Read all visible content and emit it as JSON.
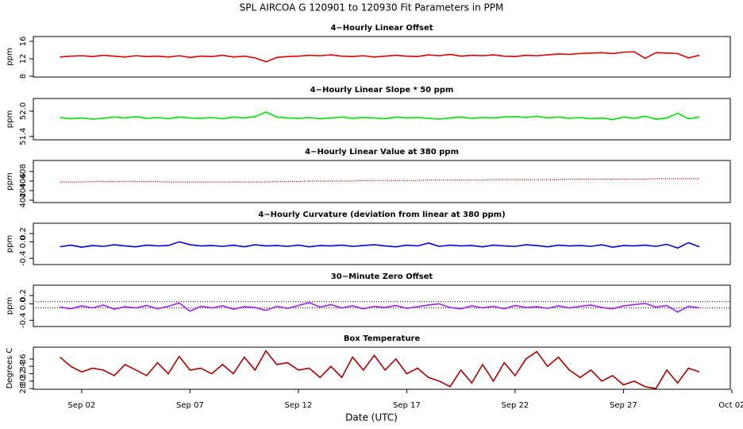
{
  "title": "SPL   AIRCOA G   120901 to 120930   Fit Parameters in PPM",
  "x_label": "Date (UTC)",
  "chart_data": [
    {
      "type": "line",
      "title": "4−Hourly Linear Offset",
      "y_label": "ppm",
      "color": "#dd0000",
      "line_style": "solid",
      "xlim": [
        -0.23,
        31.93
      ],
      "ylim": [
        7.8,
        17.1
      ],
      "yticks": [
        8,
        12,
        16
      ],
      "x": [
        1,
        1.5,
        2,
        2.5,
        3,
        3.5,
        4,
        4.5,
        5,
        5.5,
        6,
        6.5,
        7,
        7.5,
        8,
        8.5,
        9,
        9.5,
        10,
        10.5,
        11,
        11.5,
        12,
        12.5,
        13,
        13.5,
        14,
        14.5,
        15,
        15.5,
        16,
        16.5,
        17,
        17.5,
        18,
        18.5,
        19,
        19.5,
        20,
        20.5,
        21,
        21.5,
        22,
        22.5,
        23,
        23.5,
        24,
        24.5,
        25,
        25.5,
        26,
        26.5,
        27,
        27.5,
        28,
        28.5,
        29,
        29.5,
        30,
        30.5
      ],
      "values": [
        12.4,
        12.6,
        12.7,
        12.5,
        12.8,
        12.6,
        12.4,
        12.7,
        12.5,
        12.6,
        12.4,
        12.7,
        12.3,
        12.6,
        12.5,
        12.8,
        12.4,
        12.6,
        12.2,
        11.3,
        12.3,
        12.5,
        12.6,
        12.8,
        12.7,
        12.9,
        12.6,
        12.5,
        12.7,
        12.4,
        12.6,
        12.8,
        12.6,
        12.5,
        12.9,
        12.7,
        13.0,
        12.6,
        12.8,
        12.7,
        12.9,
        12.6,
        12.5,
        12.8,
        12.7,
        12.9,
        13.1,
        13.0,
        13.2,
        13.3,
        13.4,
        13.2,
        13.5,
        13.6,
        12.1,
        13.4,
        13.3,
        13.2,
        12.2,
        12.8
      ]
    },
    {
      "type": "line",
      "title": "4−Hourly Linear Slope * 50 ppm",
      "y_label": "ppm",
      "color": "#00e000",
      "line_style": "solid",
      "xlim": [
        -0.23,
        31.93
      ],
      "ylim": [
        51.32,
        52.3
      ],
      "yticks": [
        51.4,
        {
          "value": 52,
          "label": "52.0"
        }
      ],
      "x": [
        1,
        1.5,
        2,
        2.5,
        3,
        3.5,
        4,
        4.5,
        5,
        5.5,
        6,
        6.5,
        7,
        7.5,
        8,
        8.5,
        9,
        9.5,
        10,
        10.5,
        11,
        11.5,
        12,
        12.5,
        13,
        13.5,
        14,
        14.5,
        15,
        15.5,
        16,
        16.5,
        17,
        17.5,
        18,
        18.5,
        19,
        19.5,
        20,
        20.5,
        21,
        21.5,
        22,
        22.5,
        23,
        23.5,
        24,
        24.5,
        25,
        25.5,
        26,
        26.5,
        27,
        27.5,
        28,
        28.5,
        29,
        29.5,
        30,
        30.5
      ],
      "values": [
        51.85,
        51.82,
        51.84,
        51.81,
        51.83,
        51.86,
        51.84,
        51.87,
        51.83,
        51.85,
        51.82,
        51.86,
        51.84,
        51.83,
        51.85,
        51.82,
        51.86,
        51.84,
        51.87,
        51.98,
        51.86,
        51.84,
        51.83,
        51.85,
        51.82,
        51.84,
        51.86,
        51.83,
        51.85,
        51.84,
        51.82,
        51.86,
        51.84,
        51.85,
        51.83,
        51.81,
        51.84,
        51.86,
        51.83,
        51.85,
        51.84,
        51.86,
        51.87,
        51.85,
        51.88,
        51.84,
        51.86,
        51.83,
        51.85,
        51.82,
        51.84,
        51.8,
        51.86,
        51.83,
        51.88,
        51.81,
        51.84,
        51.95,
        51.82,
        51.86
      ]
    },
    {
      "type": "line",
      "title": "4−Hourly Linear Value at 380 ppm",
      "y_label": "ppm",
      "color": "#990000",
      "line_style": "dotted",
      "xlim": [
        -0.23,
        31.93
      ],
      "ylim": [
        401.5,
        410.3
      ],
      "yticks": [
        402,
        404,
        406,
        408
      ],
      "x": [
        1,
        1.5,
        2,
        2.5,
        3,
        3.5,
        4,
        4.5,
        5,
        5.5,
        6,
        6.5,
        7,
        7.5,
        8,
        8.5,
        9,
        9.5,
        10,
        10.5,
        11,
        11.5,
        12,
        12.5,
        13,
        13.5,
        14,
        14.5,
        15,
        15.5,
        16,
        16.5,
        17,
        17.5,
        18,
        18.5,
        19,
        19.5,
        20,
        20.5,
        21,
        21.5,
        22,
        22.5,
        23,
        23.5,
        24,
        24.5,
        25,
        25.5,
        26,
        26.5,
        27,
        27.5,
        28,
        28.5,
        29,
        29.5,
        30,
        30.5
      ],
      "values": [
        405.8,
        405.8,
        405.8,
        405.9,
        405.9,
        405.9,
        405.9,
        405.9,
        405.9,
        405.9,
        405.8,
        405.8,
        405.8,
        405.8,
        405.8,
        405.8,
        405.8,
        405.8,
        405.8,
        405.8,
        405.9,
        405.9,
        405.9,
        406.0,
        406.0,
        406.0,
        406.0,
        406.0,
        406.1,
        406.1,
        406.1,
        406.1,
        406.1,
        406.1,
        406.2,
        406.2,
        406.2,
        406.2,
        406.2,
        406.2,
        406.3,
        406.3,
        406.3,
        406.3,
        406.3,
        406.3,
        406.3,
        406.4,
        406.4,
        406.4,
        406.4,
        406.4,
        406.4,
        406.4,
        406.4,
        406.5,
        406.5,
        406.5,
        406.5,
        406.5
      ]
    },
    {
      "type": "line",
      "title": "4−Hourly Curvature (deviation from linear at 380 ppm)",
      "y_label": "ppm",
      "color": "#0000dd",
      "line_style": "solid",
      "xlim": [
        -0.23,
        31.93
      ],
      "ylim": [
        -0.55,
        0.45
      ],
      "yticks": [
        -0.4,
        {
          "value": 0,
          "label": "0.0"
        },
        0.2
      ],
      "x": [
        1,
        1.5,
        2,
        2.5,
        3,
        3.5,
        4,
        4.5,
        5,
        5.5,
        6,
        6.5,
        7,
        7.5,
        8,
        8.5,
        9,
        9.5,
        10,
        10.5,
        11,
        11.5,
        12,
        12.5,
        13,
        13.5,
        14,
        14.5,
        15,
        15.5,
        16,
        16.5,
        17,
        17.5,
        18,
        18.5,
        19,
        19.5,
        20,
        20.5,
        21,
        21.5,
        22,
        22.5,
        23,
        23.5,
        24,
        24.5,
        25,
        25.5,
        26,
        26.5,
        27,
        27.5,
        28,
        28.5,
        29,
        29.5,
        30,
        30.5
      ],
      "values": [
        -0.12,
        -0.08,
        -0.13,
        -0.09,
        -0.11,
        -0.07,
        -0.1,
        -0.12,
        -0.08,
        -0.1,
        -0.09,
        0.0,
        -0.07,
        -0.1,
        -0.09,
        -0.11,
        -0.08,
        -0.12,
        -0.07,
        -0.1,
        -0.09,
        -0.11,
        -0.08,
        -0.12,
        -0.09,
        -0.1,
        -0.08,
        -0.11,
        -0.09,
        -0.07,
        -0.1,
        -0.12,
        -0.08,
        -0.1,
        -0.03,
        -0.11,
        -0.08,
        -0.1,
        -0.09,
        -0.12,
        -0.08,
        -0.1,
        -0.11,
        -0.07,
        -0.09,
        -0.12,
        -0.08,
        -0.1,
        -0.09,
        -0.11,
        -0.07,
        -0.13,
        -0.09,
        -0.1,
        -0.08,
        -0.11,
        -0.06,
        -0.15,
        -0.02,
        -0.12
      ]
    },
    {
      "type": "line",
      "title": "30−Minute Zero Offset",
      "y_label": "ppm",
      "color": "#a020f0",
      "line_style": "solid",
      "xlim": [
        -0.23,
        31.93
      ],
      "ylim": [
        -0.55,
        0.45
      ],
      "yticks": [
        -0.4,
        {
          "value": 0,
          "label": "0.0"
        },
        0.2
      ],
      "hlines": [
        0.05,
        -0.1
      ],
      "x": [
        1,
        1.5,
        2,
        2.5,
        3,
        3.5,
        4,
        4.5,
        5,
        5.5,
        6,
        6.5,
        7,
        7.5,
        8,
        8.5,
        9,
        9.5,
        10,
        10.5,
        11,
        11.5,
        12,
        12.5,
        13,
        13.5,
        14,
        14.5,
        15,
        15.5,
        16,
        16.5,
        17,
        17.5,
        18,
        18.5,
        19,
        19.5,
        20,
        20.5,
        21,
        21.5,
        22,
        22.5,
        23,
        23.5,
        24,
        24.5,
        25,
        25.5,
        26,
        26.5,
        27,
        27.5,
        28,
        28.5,
        29,
        29.5,
        30,
        30.5
      ],
      "values": [
        -0.08,
        -0.12,
        -0.05,
        -0.1,
        -0.03,
        -0.13,
        -0.07,
        -0.1,
        -0.04,
        -0.12,
        -0.06,
        0.02,
        -0.18,
        -0.06,
        -0.1,
        -0.05,
        -0.13,
        -0.07,
        -0.09,
        -0.16,
        -0.06,
        -0.11,
        -0.04,
        0.03,
        -0.08,
        -0.02,
        -0.1,
        -0.05,
        -0.12,
        -0.06,
        -0.09,
        -0.04,
        -0.11,
        -0.07,
        -0.03,
        0.0,
        -0.09,
        -0.12,
        -0.05,
        -0.1,
        -0.06,
        -0.12,
        -0.04,
        -0.09,
        -0.07,
        -0.11,
        -0.05,
        -0.1,
        -0.06,
        -0.03,
        -0.09,
        -0.12,
        -0.05,
        -0.02,
        0.01,
        -0.08,
        -0.04,
        -0.2,
        -0.06,
        -0.1
      ]
    },
    {
      "type": "line",
      "title": "Box Temperature",
      "y_label": "Degrees C",
      "color": "#aa0000",
      "line_style": "solid",
      "xlim": [
        -0.23,
        31.93
      ],
      "ylim": [
        27.8,
        39.2
      ],
      "yticks": [
        28,
        30,
        32,
        34,
        36
      ],
      "xticks": [
        {
          "value": 2,
          "label": "Sep 02"
        },
        {
          "value": 7,
          "label": "Sep 07"
        },
        {
          "value": 12,
          "label": "Sep 12"
        },
        {
          "value": 17,
          "label": "Sep 17"
        },
        {
          "value": 22,
          "label": "Sep 22"
        },
        {
          "value": 27,
          "label": "Sep 27"
        },
        {
          "value": 32,
          "label": "Oct 02"
        }
      ],
      "x": [
        1,
        1.5,
        2,
        2.5,
        3,
        3.5,
        4,
        4.5,
        5,
        5.5,
        6,
        6.5,
        7,
        7.5,
        8,
        8.5,
        9,
        9.5,
        10,
        10.5,
        11,
        11.5,
        12,
        12.5,
        13,
        13.5,
        14,
        14.5,
        15,
        15.5,
        16,
        16.5,
        17,
        17.5,
        18,
        18.5,
        19,
        19.5,
        20,
        20.5,
        21,
        21.5,
        22,
        22.5,
        23,
        23.5,
        24,
        24.5,
        25,
        25.5,
        26,
        26.5,
        27,
        27.5,
        28,
        28.5,
        29,
        29.5,
        30,
        30.5
      ],
      "values": [
        36.5,
        34,
        32.5,
        33.5,
        33,
        31.5,
        34.5,
        33,
        31.5,
        35,
        32,
        36.7,
        33,
        33.5,
        32,
        34.5,
        32,
        36.5,
        33,
        38.2,
        34.5,
        35,
        33,
        33.5,
        31,
        34,
        31,
        36.5,
        33,
        37,
        33,
        36,
        32,
        33.5,
        31,
        30,
        28.5,
        33,
        29.5,
        34.5,
        30,
        35,
        31.5,
        36,
        38,
        34,
        36.5,
        33,
        31,
        33,
        30,
        31.5,
        29,
        30,
        28.5,
        28,
        33,
        29.5,
        33.5,
        32.5
      ]
    }
  ]
}
